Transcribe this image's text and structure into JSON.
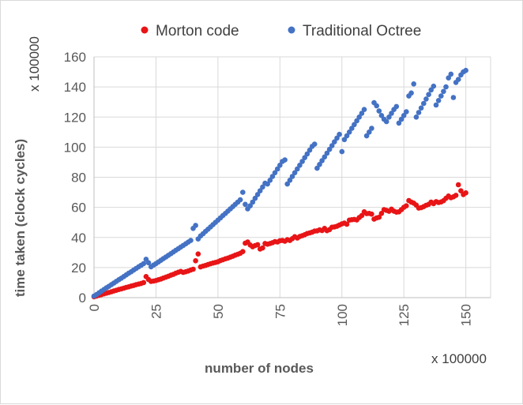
{
  "chart_data": {
    "type": "scatter",
    "xlabel": "number of nodes",
    "ylabel": "time taken (clock cycles)",
    "x_unit": "x 100000",
    "y_unit": "x 100000",
    "xlim": [
      0,
      160
    ],
    "ylim": [
      0,
      160
    ],
    "x_ticks": [
      "0",
      "25",
      "50",
      "75",
      "100",
      "125",
      "150"
    ],
    "y_ticks": [
      "0",
      "20",
      "40",
      "60",
      "80",
      "100",
      "120",
      "140",
      "160"
    ],
    "grid": true,
    "legend_position": "top",
    "series": [
      {
        "name": "Morton code",
        "color": "#e81416",
        "points": [
          [
            0,
            0.6
          ],
          [
            1,
            1.0
          ],
          [
            2,
            1.5
          ],
          [
            3,
            2.0
          ],
          [
            4,
            2.5
          ],
          [
            5,
            3.0
          ],
          [
            6,
            3.4
          ],
          [
            7,
            3.9
          ],
          [
            8,
            4.4
          ],
          [
            9,
            4.9
          ],
          [
            10,
            5.4
          ],
          [
            11,
            5.8
          ],
          [
            12,
            6.3
          ],
          [
            13,
            6.8
          ],
          [
            14,
            7.2
          ],
          [
            15,
            7.7
          ],
          [
            16,
            8.1
          ],
          [
            17,
            8.6
          ],
          [
            18,
            9.0
          ],
          [
            19,
            9.4
          ],
          [
            20,
            10.0
          ],
          [
            21,
            14.0
          ],
          [
            22,
            12.0
          ],
          [
            23,
            10.8
          ],
          [
            24,
            11.0
          ],
          [
            25,
            11.4
          ],
          [
            26,
            11.9
          ],
          [
            27,
            12.4
          ],
          [
            28,
            13.0
          ],
          [
            29,
            13.6
          ],
          [
            30,
            14.2
          ],
          [
            31,
            14.9
          ],
          [
            32,
            15.5
          ],
          [
            33,
            16.2
          ],
          [
            34,
            16.9
          ],
          [
            35,
            17.4
          ],
          [
            36,
            16.8
          ],
          [
            37,
            17.2
          ],
          [
            38,
            17.7
          ],
          [
            39,
            18.3
          ],
          [
            40,
            18.9
          ],
          [
            41,
            24.5
          ],
          [
            42,
            29.0
          ],
          [
            43,
            20.4
          ],
          [
            44,
            21.0
          ],
          [
            45,
            21.4
          ],
          [
            46,
            22.0
          ],
          [
            47,
            22.5
          ],
          [
            48,
            23.0
          ],
          [
            49,
            23.4
          ],
          [
            50,
            23.8
          ],
          [
            51,
            24.6
          ],
          [
            52,
            25.2
          ],
          [
            53,
            25.8
          ],
          [
            54,
            26.3
          ],
          [
            55,
            26.9
          ],
          [
            56,
            27.5
          ],
          [
            57,
            28.2
          ],
          [
            58,
            28.8
          ],
          [
            59,
            29.5
          ],
          [
            60,
            30.6
          ],
          [
            61,
            36.2
          ],
          [
            62,
            37.0
          ],
          [
            63,
            35.0
          ],
          [
            64,
            33.8
          ],
          [
            65,
            34.6
          ],
          [
            66,
            35.2
          ],
          [
            67,
            32.3
          ],
          [
            68,
            33.0
          ],
          [
            69,
            36.0
          ],
          [
            70,
            35.5
          ],
          [
            71,
            36.0
          ],
          [
            72,
            36.5
          ],
          [
            73,
            37.2
          ],
          [
            74,
            37.0
          ],
          [
            75,
            37.8
          ],
          [
            76,
            38.0
          ],
          [
            77,
            37.5
          ],
          [
            78,
            38.5
          ],
          [
            79,
            38.0
          ],
          [
            80,
            39.2
          ],
          [
            81,
            40.5
          ],
          [
            82,
            39.6
          ],
          [
            83,
            40.6
          ],
          [
            84,
            41.2
          ],
          [
            85,
            41.8
          ],
          [
            86,
            42.6
          ],
          [
            87,
            43.0
          ],
          [
            88,
            43.5
          ],
          [
            89,
            44.2
          ],
          [
            90,
            44.4
          ],
          [
            91,
            45.0
          ],
          [
            92,
            44.6
          ],
          [
            93,
            46.0
          ],
          [
            94,
            44.5
          ],
          [
            95,
            45.2
          ],
          [
            96,
            46.8
          ],
          [
            97,
            47.0
          ],
          [
            98,
            47.4
          ],
          [
            99,
            48.2
          ],
          [
            100,
            49.0
          ],
          [
            101,
            49.5
          ],
          [
            102,
            48.8
          ],
          [
            103,
            51.5
          ],
          [
            104,
            51.8
          ],
          [
            105,
            52.0
          ],
          [
            106,
            51.6
          ],
          [
            107,
            53.2
          ],
          [
            108,
            54.5
          ],
          [
            109,
            57.0
          ],
          [
            110,
            55.8
          ],
          [
            111,
            56.0
          ],
          [
            112,
            55.5
          ],
          [
            113,
            52.2
          ],
          [
            114,
            53.0
          ],
          [
            115,
            53.4
          ],
          [
            116,
            56.0
          ],
          [
            117,
            58.5
          ],
          [
            118,
            58.0
          ],
          [
            119,
            57.4
          ],
          [
            120,
            58.8
          ],
          [
            121,
            57.5
          ],
          [
            122,
            56.8
          ],
          [
            123,
            57.0
          ],
          [
            124,
            58.5
          ],
          [
            125,
            60.0
          ],
          [
            126,
            61.0
          ],
          [
            127,
            64.5
          ],
          [
            128,
            63.5
          ],
          [
            129,
            62.8
          ],
          [
            130,
            61.5
          ],
          [
            131,
            59.5
          ],
          [
            132,
            59.8
          ],
          [
            133,
            60.5
          ],
          [
            134,
            61.4
          ],
          [
            135,
            62.0
          ],
          [
            136,
            63.5
          ],
          [
            137,
            62.5
          ],
          [
            138,
            63.8
          ],
          [
            139,
            63.2
          ],
          [
            140,
            63.6
          ],
          [
            141,
            64.4
          ],
          [
            142,
            66.0
          ],
          [
            143,
            67.5
          ],
          [
            144,
            66.4
          ],
          [
            145,
            67.0
          ],
          [
            146,
            68.0
          ],
          [
            147,
            75.0
          ],
          [
            148,
            71.0
          ],
          [
            149,
            68.5
          ],
          [
            150,
            69.6
          ]
        ]
      },
      {
        "name": "Traditional Octree",
        "color": "#4472c4",
        "points": [
          [
            0,
            1.0
          ],
          [
            1,
            2.0
          ],
          [
            2,
            3.2
          ],
          [
            3,
            4.3
          ],
          [
            4,
            5.4
          ],
          [
            5,
            6.5
          ],
          [
            6,
            7.5
          ],
          [
            7,
            8.6
          ],
          [
            8,
            9.7
          ],
          [
            9,
            10.8
          ],
          [
            10,
            11.9
          ],
          [
            11,
            12.9
          ],
          [
            12,
            14.0
          ],
          [
            13,
            15.1
          ],
          [
            14,
            16.2
          ],
          [
            15,
            17.2
          ],
          [
            16,
            18.3
          ],
          [
            17,
            19.4
          ],
          [
            18,
            20.5
          ],
          [
            19,
            21.5
          ],
          [
            20,
            22.6
          ],
          [
            21,
            25.5
          ],
          [
            22,
            23.2
          ],
          [
            23,
            20.5
          ],
          [
            24,
            21.6
          ],
          [
            25,
            22.6
          ],
          [
            26,
            23.7
          ],
          [
            27,
            24.8
          ],
          [
            28,
            25.9
          ],
          [
            29,
            27.0
          ],
          [
            30,
            28.1
          ],
          [
            31,
            29.2
          ],
          [
            32,
            30.3
          ],
          [
            33,
            31.4
          ],
          [
            34,
            32.5
          ],
          [
            35,
            33.6
          ],
          [
            36,
            34.7
          ],
          [
            37,
            35.8
          ],
          [
            38,
            36.9
          ],
          [
            39,
            38.0
          ],
          [
            40,
            46.0
          ],
          [
            41,
            48.0
          ],
          [
            42,
            39.0
          ],
          [
            43,
            41.0
          ],
          [
            44,
            42.5
          ],
          [
            45,
            44.0
          ],
          [
            46,
            45.5
          ],
          [
            47,
            47.0
          ],
          [
            48,
            48.5
          ],
          [
            49,
            50.0
          ],
          [
            50,
            51.5
          ],
          [
            51,
            53.0
          ],
          [
            52,
            54.5
          ],
          [
            53,
            56.0
          ],
          [
            54,
            57.5
          ],
          [
            55,
            59.0
          ],
          [
            56,
            60.5
          ],
          [
            57,
            62.0
          ],
          [
            58,
            63.5
          ],
          [
            59,
            65.0
          ],
          [
            60,
            70.0
          ],
          [
            61,
            62.0
          ],
          [
            62,
            59.0
          ],
          [
            63,
            61.0
          ],
          [
            64,
            63.5
          ],
          [
            65,
            66.0
          ],
          [
            66,
            68.5
          ],
          [
            67,
            71.0
          ],
          [
            68,
            73.5
          ],
          [
            69,
            76.0
          ],
          [
            70,
            75.5
          ],
          [
            71,
            78.0
          ],
          [
            72,
            80.5
          ],
          [
            73,
            83.0
          ],
          [
            74,
            85.5
          ],
          [
            75,
            88.0
          ],
          [
            76,
            90.5
          ],
          [
            77,
            91.5
          ],
          [
            78,
            75.5
          ],
          [
            79,
            78.0
          ],
          [
            80,
            80.5
          ],
          [
            81,
            83.0
          ],
          [
            82,
            85.5
          ],
          [
            83,
            88.0
          ],
          [
            84,
            90.5
          ],
          [
            85,
            93.0
          ],
          [
            86,
            95.5
          ],
          [
            87,
            98.0
          ],
          [
            88,
            100.5
          ],
          [
            89,
            102.0
          ],
          [
            90,
            86.0
          ],
          [
            91,
            88.5
          ],
          [
            92,
            91.0
          ],
          [
            93,
            93.5
          ],
          [
            94,
            96.0
          ],
          [
            95,
            98.5
          ],
          [
            96,
            101.0
          ],
          [
            97,
            103.5
          ],
          [
            98,
            106.0
          ],
          [
            99,
            108.5
          ],
          [
            100,
            97.0
          ],
          [
            101,
            105.0
          ],
          [
            102,
            107.5
          ],
          [
            103,
            110.0
          ],
          [
            104,
            112.5
          ],
          [
            105,
            115.0
          ],
          [
            106,
            117.5
          ],
          [
            107,
            120.0
          ],
          [
            108,
            122.5
          ],
          [
            109,
            125.0
          ],
          [
            110,
            107.5
          ],
          [
            111,
            110.0
          ],
          [
            112,
            112.5
          ],
          [
            113,
            129.5
          ],
          [
            114,
            127.5
          ],
          [
            115,
            124.0
          ],
          [
            116,
            121.0
          ],
          [
            117,
            118.5
          ],
          [
            118,
            117.0
          ],
          [
            119,
            120.0
          ],
          [
            120,
            122.5
          ],
          [
            121,
            125.0
          ],
          [
            122,
            127.0
          ],
          [
            123,
            116.0
          ],
          [
            124,
            118.5
          ],
          [
            125,
            121.0
          ],
          [
            126,
            123.5
          ],
          [
            127,
            134.0
          ],
          [
            128,
            136.0
          ],
          [
            129,
            142.0
          ],
          [
            130,
            120.0
          ],
          [
            131,
            123.0
          ],
          [
            132,
            126.0
          ],
          [
            133,
            129.0
          ],
          [
            134,
            132.0
          ],
          [
            135,
            135.0
          ],
          [
            136,
            138.0
          ],
          [
            137,
            140.5
          ],
          [
            138,
            128.0
          ],
          [
            139,
            131.0
          ],
          [
            140,
            134.0
          ],
          [
            141,
            137.0
          ],
          [
            142,
            140.0
          ],
          [
            143,
            146.0
          ],
          [
            144,
            148.5
          ],
          [
            145,
            133.0
          ],
          [
            146,
            143.0
          ],
          [
            147,
            145.0
          ],
          [
            148,
            148.0
          ],
          [
            149,
            150.0
          ],
          [
            150,
            151.0
          ]
        ]
      }
    ]
  }
}
